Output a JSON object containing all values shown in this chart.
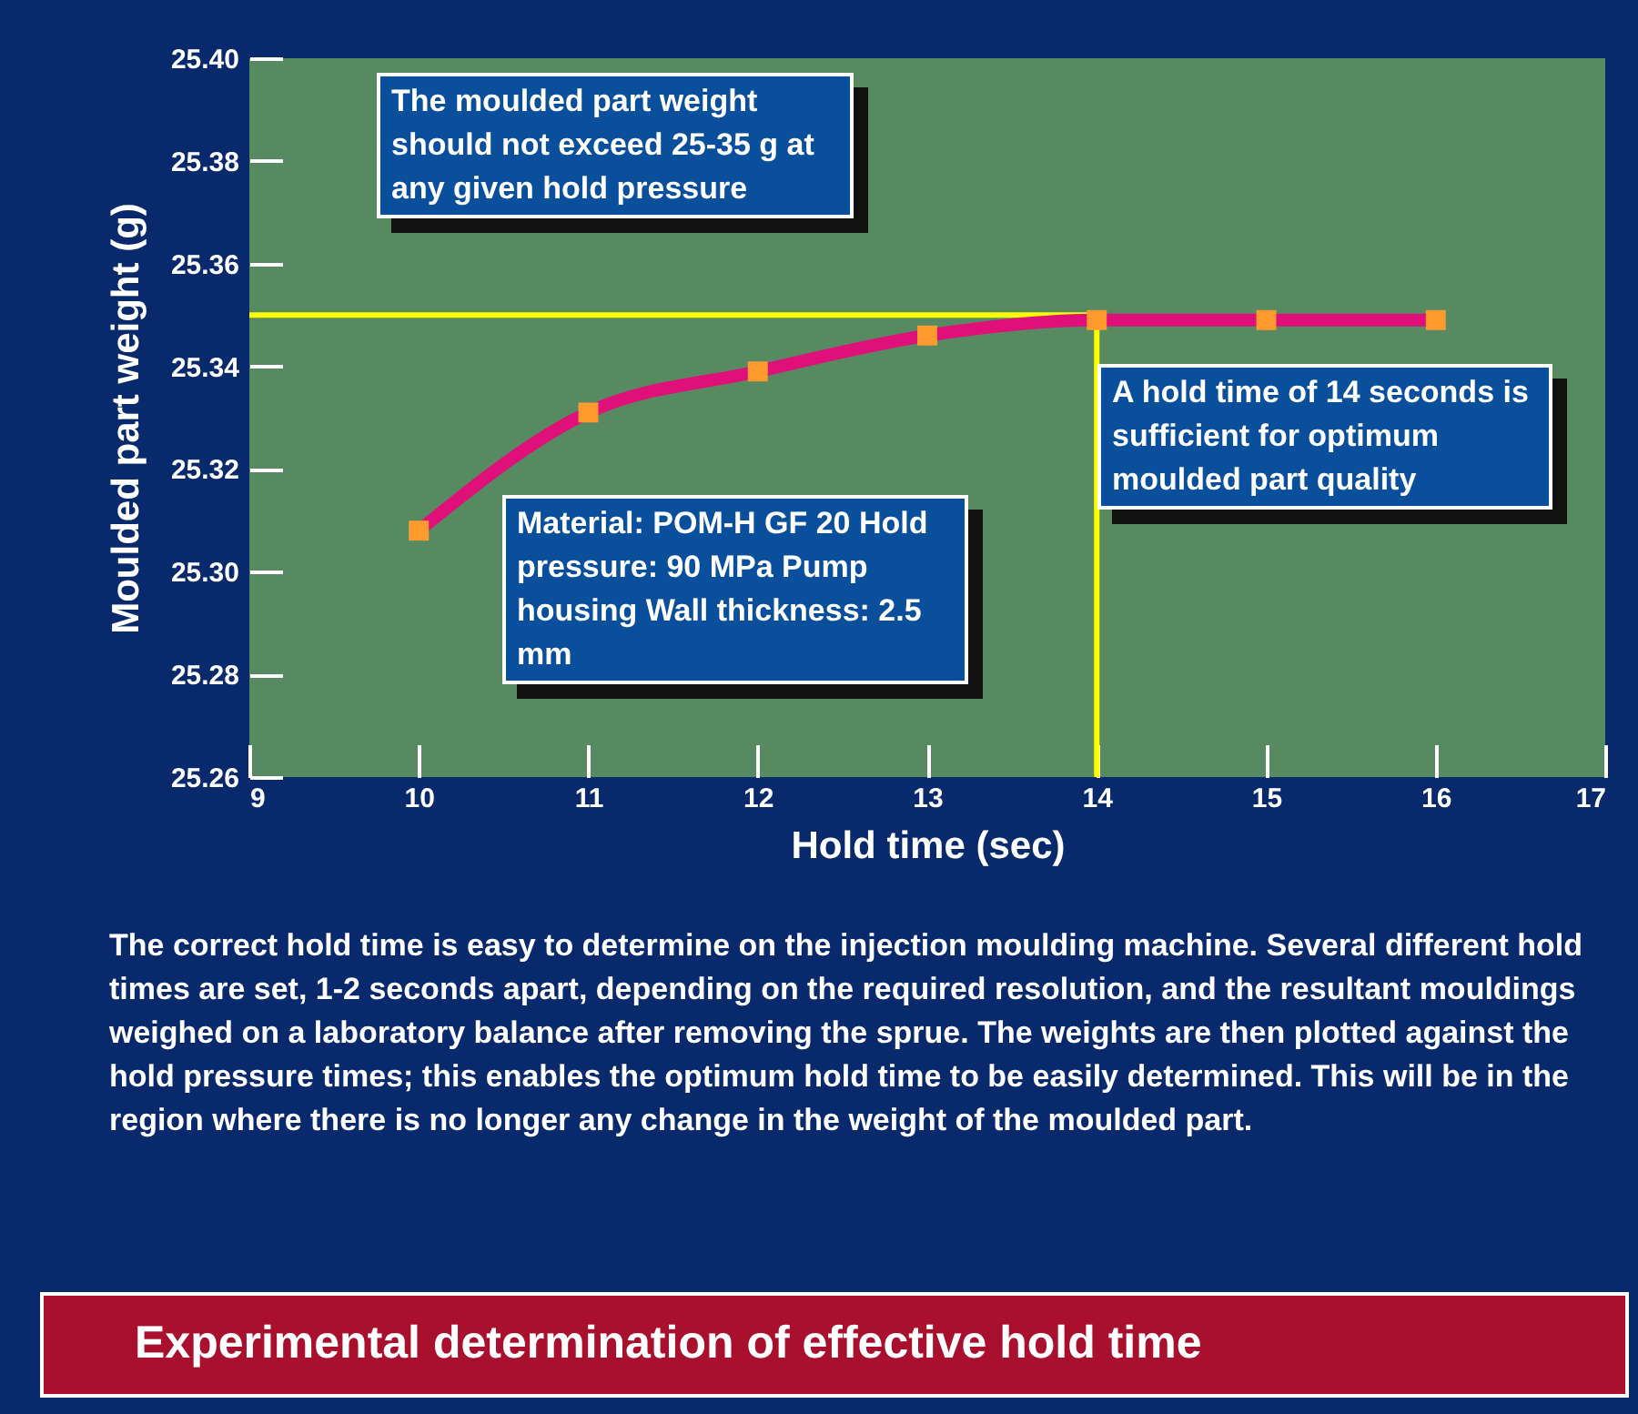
{
  "chart_data": {
    "type": "line",
    "title": "Experimental determination of effective hold time",
    "xlabel": "Hold time (sec)",
    "ylabel": "Moulded part weight (g)",
    "x": [
      10,
      11,
      12,
      13,
      14,
      15,
      16
    ],
    "series": [
      {
        "type": "line",
        "color": "#e0107a",
        "values": [
          25.308,
          25.331,
          25.339,
          25.346,
          25.349,
          25.349,
          25.349
        ],
        "marker": "none"
      },
      {
        "type": "scatter",
        "color": "#ff9a2e",
        "values": [
          25.308,
          25.331,
          25.339,
          25.346,
          25.349,
          25.349,
          25.349
        ],
        "marker": "square"
      }
    ],
    "xlim": [
      9,
      17
    ],
    "xticks": [
      9,
      10,
      11,
      12,
      13,
      14,
      15,
      16,
      17
    ],
    "ylim": [
      25.26,
      25.4
    ],
    "yticks": [
      25.26,
      25.28,
      {
        "value": 25.3,
        "label": "25.30"
      },
      25.32,
      25.34,
      25.36,
      25.38,
      {
        "value": 25.4,
        "label": "25.40"
      }
    ],
    "grid": false,
    "ref_lines": [
      {
        "axis": "y",
        "value": 25.35,
        "color": "#ffff00"
      },
      {
        "axis": "x",
        "value": 14,
        "color": "#ffff00"
      }
    ],
    "annotations": [
      "The moulded part weight should not exceed 25-35 g at any given hold pressure",
      "Material: POM-H GF 20 Hold pressure: 90 MPa Pump housing Wall thickness: 2.5 mm",
      "A hold time of 14 seconds is sufficient for optimum moulded part quality",
      "The correct hold time is easy to determine on the injection moulding machine. Several different hold times are set, 1-2 seconds apart, depending on the required resolution, and the resultant mouldings weighed on a laboratory balance after removing the sprue. The weights are then plotted against the hold pressure times; this enables the optimum hold time to be easily determined. This will be in the region where there is no longer any change in the weight of the moulded part."
    ]
  }
}
